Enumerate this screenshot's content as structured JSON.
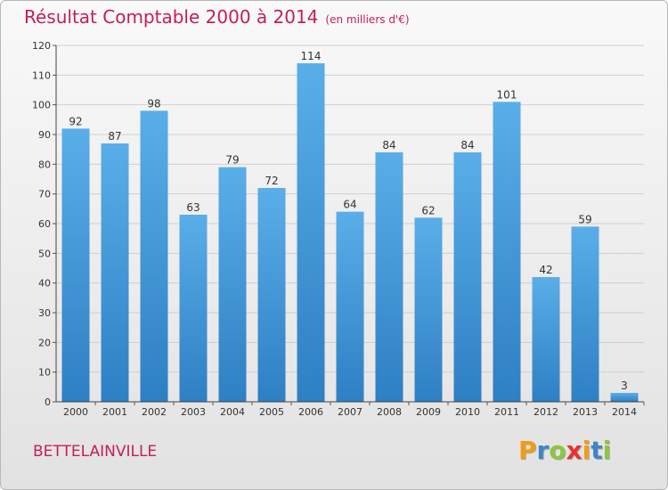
{
  "chart_data": {
    "type": "bar",
    "title": "Résultat Comptable 2000 à 2014",
    "subtitle": "(en milliers d'€)",
    "categories": [
      "2000",
      "2001",
      "2002",
      "2003",
      "2004",
      "2005",
      "2006",
      "2007",
      "2008",
      "2009",
      "2010",
      "2011",
      "2012",
      "2013",
      "2014"
    ],
    "values": [
      92,
      87,
      98,
      63,
      79,
      72,
      114,
      64,
      84,
      62,
      84,
      101,
      42,
      59,
      3
    ],
    "ylim": [
      0,
      120
    ],
    "yticks": [
      0,
      10,
      20,
      30,
      40,
      50,
      60,
      70,
      80,
      90,
      100,
      110,
      120
    ],
    "xlabel": "",
    "ylabel": "",
    "grid": true,
    "bar_color": "#4a9fe0"
  },
  "footer": {
    "commune": "BETTELAINVILLE",
    "logo_letters": [
      "P",
      "r",
      "o",
      "x",
      "i",
      "t",
      "i"
    ],
    "logo_colors": [
      "#f39c12",
      "#3a87c9",
      "#8cc63f",
      "#e7322f",
      "#f39c12",
      "#3a87c9",
      "#8cc63f"
    ]
  }
}
